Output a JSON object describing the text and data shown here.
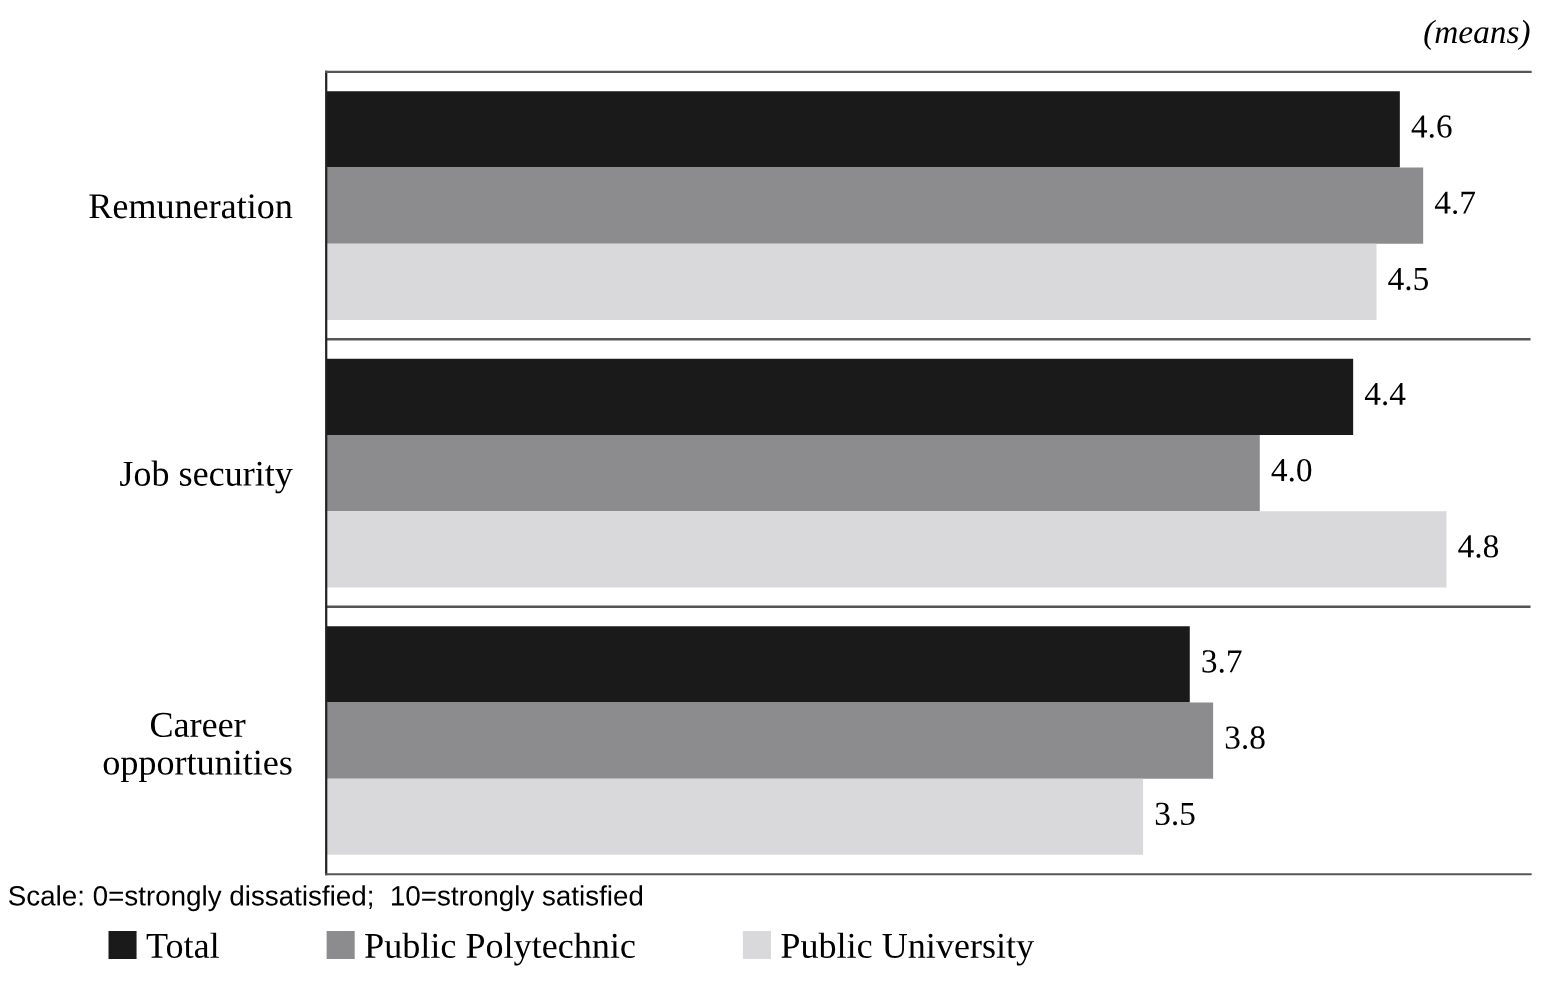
{
  "chart_data": {
    "type": "bar",
    "orientation": "horizontal",
    "categories": [
      "Remuneration",
      "Job security",
      "Career\nopportunities"
    ],
    "series": [
      {
        "name": "Total",
        "color": "#1a1a1a",
        "values": [
          4.6,
          4.4,
          3.7
        ],
        "value_labels": [
          "4.6",
          "4.4",
          "3.7"
        ]
      },
      {
        "name": "Public Polytechnic",
        "color": "#8c8c8e",
        "values": [
          4.7,
          4.0,
          3.8
        ],
        "value_labels": [
          "4.7",
          "4.0",
          "3.8"
        ]
      },
      {
        "name": "Public University",
        "color": "#d9d9db",
        "values": [
          4.5,
          4.8,
          3.5
        ],
        "value_labels": [
          "4.5",
          "4.8",
          "3.5"
        ]
      }
    ],
    "legend": "bottom",
    "grid": false,
    "annotations": [
      "(means)",
      "Scale: 0=strongly dissatisfied;  10=strongly satisfied"
    ]
  }
}
